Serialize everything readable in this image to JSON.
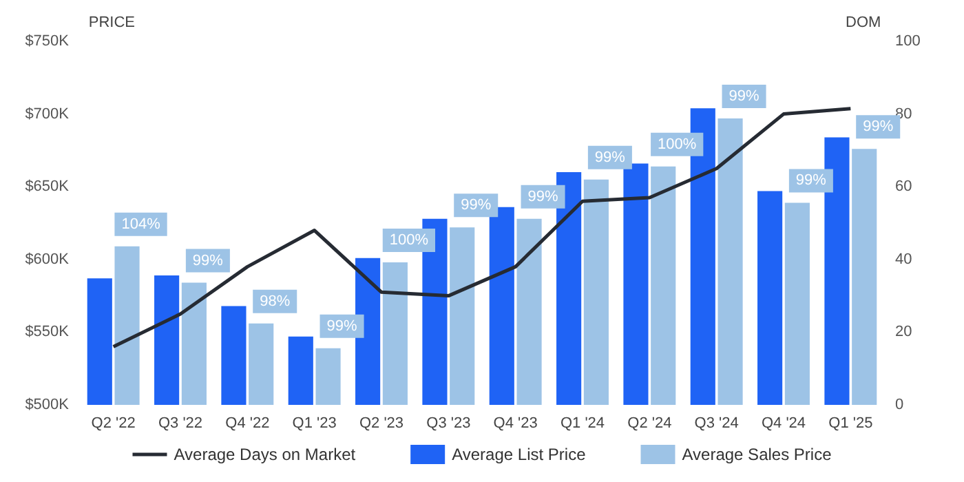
{
  "chart_data": {
    "type": "bar",
    "categories": [
      "Q2 '22",
      "Q3 '22",
      "Q4 '22",
      "Q1 '23",
      "Q2 '23",
      "Q3 '23",
      "Q4 '23",
      "Q1 '24",
      "Q2 '24",
      "Q3 '24",
      "Q4 '24",
      "Q1 '25"
    ],
    "series": [
      {
        "name": "Average Days on Market",
        "type": "line",
        "axis": "y2",
        "color": "#262b33",
        "values": [
          16,
          25,
          38,
          48,
          31,
          30,
          38,
          56,
          57,
          65,
          80,
          81.5
        ]
      },
      {
        "name": "Average List Price",
        "color": "#1f63f5",
        "values": [
          587000,
          589000,
          568000,
          547000,
          601000,
          628000,
          636000,
          660000,
          666000,
          704000,
          647000,
          684000
        ]
      },
      {
        "name": "Average Sales Price",
        "color": "#9dc3e6",
        "values": [
          609000,
          584000,
          556000,
          539000,
          598000,
          622000,
          628000,
          655000,
          664000,
          697000,
          639000,
          676000
        ]
      }
    ],
    "annotations": [
      {
        "text": "104%",
        "x": "Q2 '22",
        "y": 609000
      },
      {
        "text": "99%",
        "x": "Q3 '22",
        "y": 584000
      },
      {
        "text": "98%",
        "x": "Q4 '22",
        "y": 556000
      },
      {
        "text": "99%",
        "x": "Q1 '23",
        "y": 539000
      },
      {
        "text": "100%",
        "x": "Q2 '23",
        "y": 598000
      },
      {
        "text": "99%",
        "x": "Q3 '23",
        "y": 622000
      },
      {
        "text": "99%",
        "x": "Q4 '23",
        "y": 628000
      },
      {
        "text": "99%",
        "x": "Q1 '24",
        "y": 655000
      },
      {
        "text": "100%",
        "x": "Q2 '24",
        "y": 664000
      },
      {
        "text": "99%",
        "x": "Q3 '24",
        "y": 697000
      },
      {
        "text": "99%",
        "x": "Q4 '24",
        "y": 639000
      },
      {
        "text": "99%",
        "x": "Q1 '25",
        "y": 676000
      }
    ],
    "ylabel": "PRICE",
    "y2label": "DOM",
    "ylim": [
      500000,
      750000
    ],
    "yticks": [
      {
        "value": 500000,
        "label": "$500K"
      },
      {
        "value": 550000,
        "label": "$550K"
      },
      {
        "value": 600000,
        "label": "$600K"
      },
      {
        "value": 650000,
        "label": "$650K"
      },
      {
        "value": 700000,
        "label": "$700K"
      },
      {
        "value": 750000,
        "label": "$750K"
      }
    ],
    "y2lim": [
      0,
      100
    ],
    "y2ticks": [
      0,
      20,
      40,
      60,
      80,
      100
    ],
    "legend": "bottom"
  }
}
